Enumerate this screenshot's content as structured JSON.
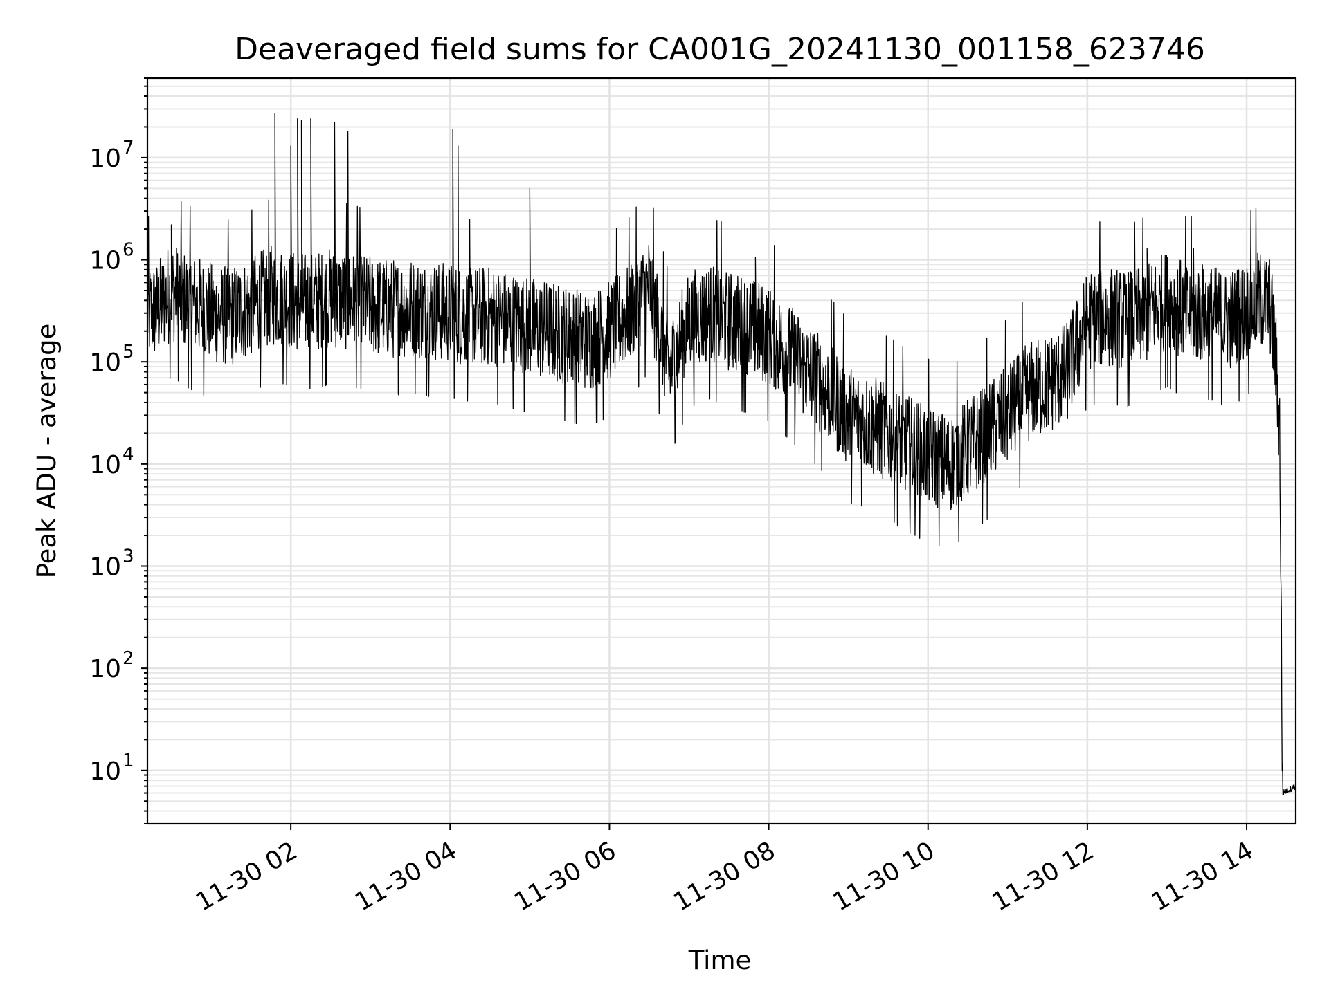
{
  "chart_data": {
    "type": "line",
    "title": "Deaveraged field sums for CA001G_20241130_001158_623746",
    "xlabel": "Time",
    "ylabel": "Peak ADU - average",
    "yscale": "log",
    "grid": true,
    "ylim": [
      3,
      60000000
    ],
    "xlim": [
      "2024-11-30 00:12",
      "2024-11-30 14:37"
    ],
    "x_tick_labels": [
      "11-30 02",
      "11-30 04",
      "11-30 06",
      "11-30 08",
      "11-30 10",
      "11-30 12",
      "11-30 14"
    ],
    "x_ticks": [
      "2024-11-30 02:00",
      "2024-11-30 04:00",
      "2024-11-30 06:00",
      "2024-11-30 08:00",
      "2024-11-30 10:00",
      "2024-11-30 12:00",
      "2024-11-30 14:00"
    ],
    "y_ticks": [
      {
        "base": "10",
        "exp": "1",
        "value": 10
      },
      {
        "base": "10",
        "exp": "2",
        "value": 100
      },
      {
        "base": "10",
        "exp": "3",
        "value": 1000
      },
      {
        "base": "10",
        "exp": "4",
        "value": 10000
      },
      {
        "base": "10",
        "exp": "5",
        "value": 100000
      },
      {
        "base": "10",
        "exp": "6",
        "value": 1000000
      },
      {
        "base": "10",
        "exp": "7",
        "value": 10000000
      }
    ],
    "series": [
      {
        "color": "#000000",
        "x": [
          "2024-11-30 00:12",
          "2024-11-30 00:20",
          "2024-11-30 00:30",
          "2024-11-30 00:40",
          "2024-11-30 00:50",
          "2024-11-30 01:00",
          "2024-11-30 01:15",
          "2024-11-30 01:30",
          "2024-11-30 01:45",
          "2024-11-30 02:00",
          "2024-11-30 02:15",
          "2024-11-30 02:30",
          "2024-11-30 02:45",
          "2024-11-30 03:00",
          "2024-11-30 03:15",
          "2024-11-30 03:30",
          "2024-11-30 03:45",
          "2024-11-30 04:00",
          "2024-11-30 04:15",
          "2024-11-30 04:30",
          "2024-11-30 04:45",
          "2024-11-30 05:00",
          "2024-11-30 05:15",
          "2024-11-30 05:30",
          "2024-11-30 05:45",
          "2024-11-30 06:00",
          "2024-11-30 06:15",
          "2024-11-30 06:30",
          "2024-11-30 06:45",
          "2024-11-30 07:00",
          "2024-11-30 07:15",
          "2024-11-30 07:30",
          "2024-11-30 07:45",
          "2024-11-30 08:00",
          "2024-11-30 08:15",
          "2024-11-30 08:30",
          "2024-11-30 08:45",
          "2024-11-30 09:00",
          "2024-11-30 09:15",
          "2024-11-30 09:30",
          "2024-11-30 09:45",
          "2024-11-30 10:00",
          "2024-11-30 10:15",
          "2024-11-30 10:30",
          "2024-11-30 10:45",
          "2024-11-30 11:00",
          "2024-11-30 11:15",
          "2024-11-30 11:30",
          "2024-11-30 11:45",
          "2024-11-30 12:00",
          "2024-11-30 12:15",
          "2024-11-30 12:30",
          "2024-11-30 12:45",
          "2024-11-30 13:00",
          "2024-11-30 13:15",
          "2024-11-30 13:30",
          "2024-11-30 13:45",
          "2024-11-30 14:00",
          "2024-11-30 14:10",
          "2024-11-30 14:18",
          "2024-11-30 14:22",
          "2024-11-30 14:25",
          "2024-11-30 14:27",
          "2024-11-30 14:37"
        ],
        "values": [
          300000,
          320000,
          500000,
          400000,
          350000,
          300000,
          280000,
          350000,
          450000,
          400000,
          380000,
          420000,
          400000,
          350000,
          330000,
          340000,
          320000,
          300000,
          280000,
          280000,
          250000,
          220000,
          200000,
          180000,
          160000,
          200000,
          300000,
          550000,
          80000,
          250000,
          300000,
          250000,
          220000,
          180000,
          120000,
          80000,
          50000,
          30000,
          25000,
          20000,
          15000,
          12000,
          10000,
          14000,
          20000,
          30000,
          50000,
          60000,
          80000,
          250000,
          280000,
          250000,
          300000,
          400000,
          300000,
          300000,
          250000,
          320000,
          400000,
          350000,
          100000,
          20000,
          6,
          7
        ]
      }
    ],
    "spikes": [
      {
        "x": "2024-11-30 00:30",
        "y": 2200000
      },
      {
        "x": "2024-11-30 01:48",
        "y": 27000000
      },
      {
        "x": "2024-11-30 02:00",
        "y": 13000000
      },
      {
        "x": "2024-11-30 02:05",
        "y": 24000000
      },
      {
        "x": "2024-11-30 02:08",
        "y": 23000000
      },
      {
        "x": "2024-11-30 02:15",
        "y": 24000000
      },
      {
        "x": "2024-11-30 02:33",
        "y": 22000000
      },
      {
        "x": "2024-11-30 02:43",
        "y": 18000000
      },
      {
        "x": "2024-11-30 04:02",
        "y": 19000000
      },
      {
        "x": "2024-11-30 04:06",
        "y": 13000000
      },
      {
        "x": "2024-11-30 05:00",
        "y": 5000000
      },
      {
        "x": "2024-11-30 07:50",
        "y": 1050000
      },
      {
        "x": "2024-11-30 12:45",
        "y": 1300000
      },
      {
        "x": "2024-11-30 13:20",
        "y": 1300000
      }
    ]
  }
}
